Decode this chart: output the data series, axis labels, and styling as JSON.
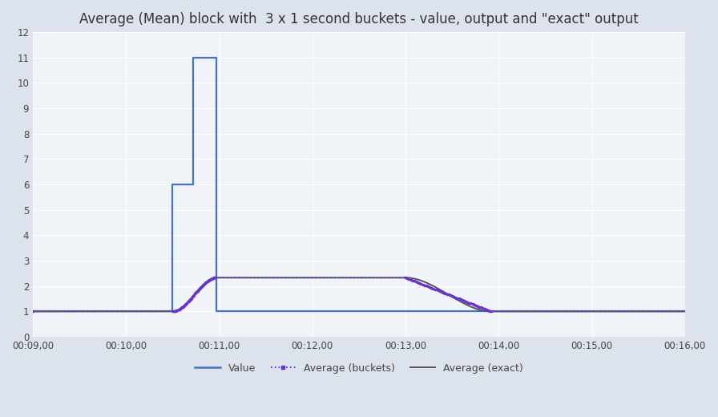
{
  "title": "Average (Mean) block with  3 x 1 second buckets - value, output and \"exact\" output",
  "background_color": "#dde3ed",
  "plot_bg_color": "#f0f3f8",
  "grid_color": "#ffffff",
  "xlim_seconds": [
    540,
    960
  ],
  "ylim": [
    0,
    12
  ],
  "yticks": [
    0,
    1,
    2,
    3,
    4,
    5,
    6,
    7,
    8,
    9,
    10,
    11,
    12
  ],
  "xtick_interval": 60,
  "value_line": {
    "color": "#4472c4",
    "linewidth": 1.6,
    "label": "Value",
    "x": [
      540,
      630,
      630,
      643,
      643,
      658,
      658,
      960
    ],
    "y": [
      1,
      1,
      6,
      6,
      11,
      11,
      1,
      1
    ]
  },
  "avg_buckets_color": "#6633cc",
  "avg_buckets_label": "Average (buckets)",
  "avg_exact_color": "#555555",
  "avg_exact_label": "Average (exact)",
  "legend_fontsize": 9,
  "title_fontsize": 12,
  "tick_fontsize": 8.5,
  "avg_value": 2.33,
  "bucket_start": 658,
  "bucket_flat_end": 780,
  "fall_end": 835,
  "rise_start": 630
}
